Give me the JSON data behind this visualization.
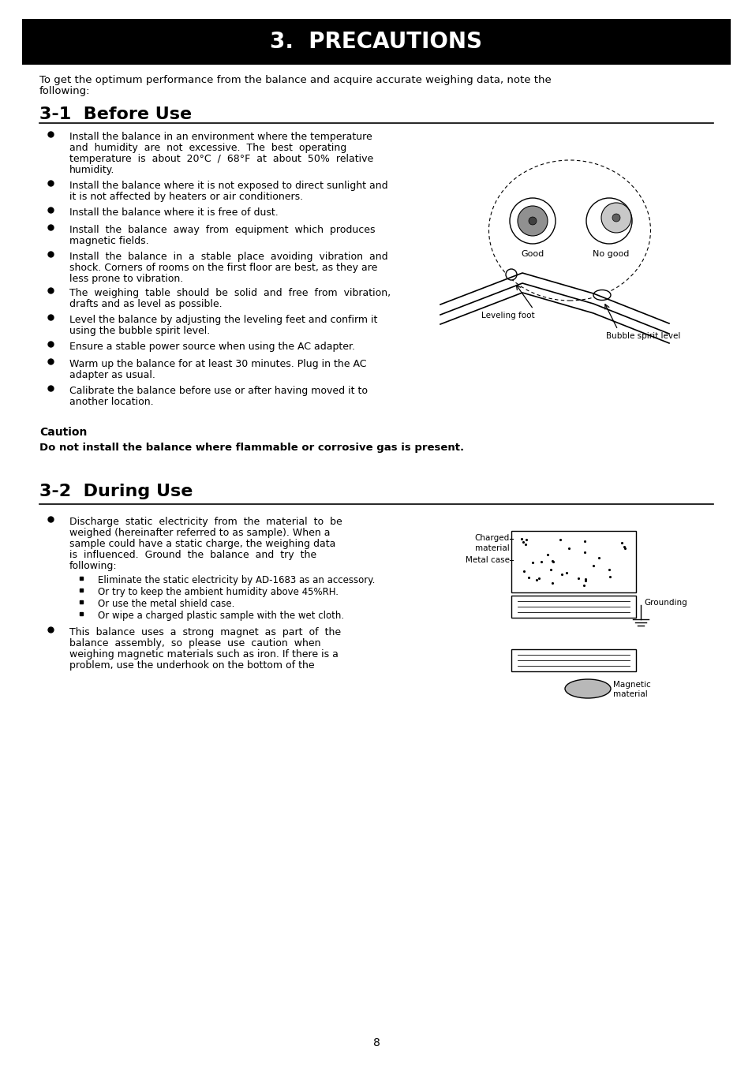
{
  "title": "3.  PRECAUTIONS",
  "title_bg": "#000000",
  "title_color": "#ffffff",
  "section1_title": "3-1  Before Use",
  "caution_title": "Caution",
  "caution_text": "Do not install the balance where flammable or corrosive gas is present.",
  "section2_title": "3-2  During Use",
  "sub_bullets": [
    "Eliminate the static electricity by AD-1683 as an accessory.",
    "Or try to keep the ambient humidity above 45%RH.",
    "Or use the metal shield case.",
    "Or wipe a charged plastic sample with the wet cloth."
  ],
  "page_number": "8",
  "bg_color": "#ffffff",
  "text_color": "#000000"
}
